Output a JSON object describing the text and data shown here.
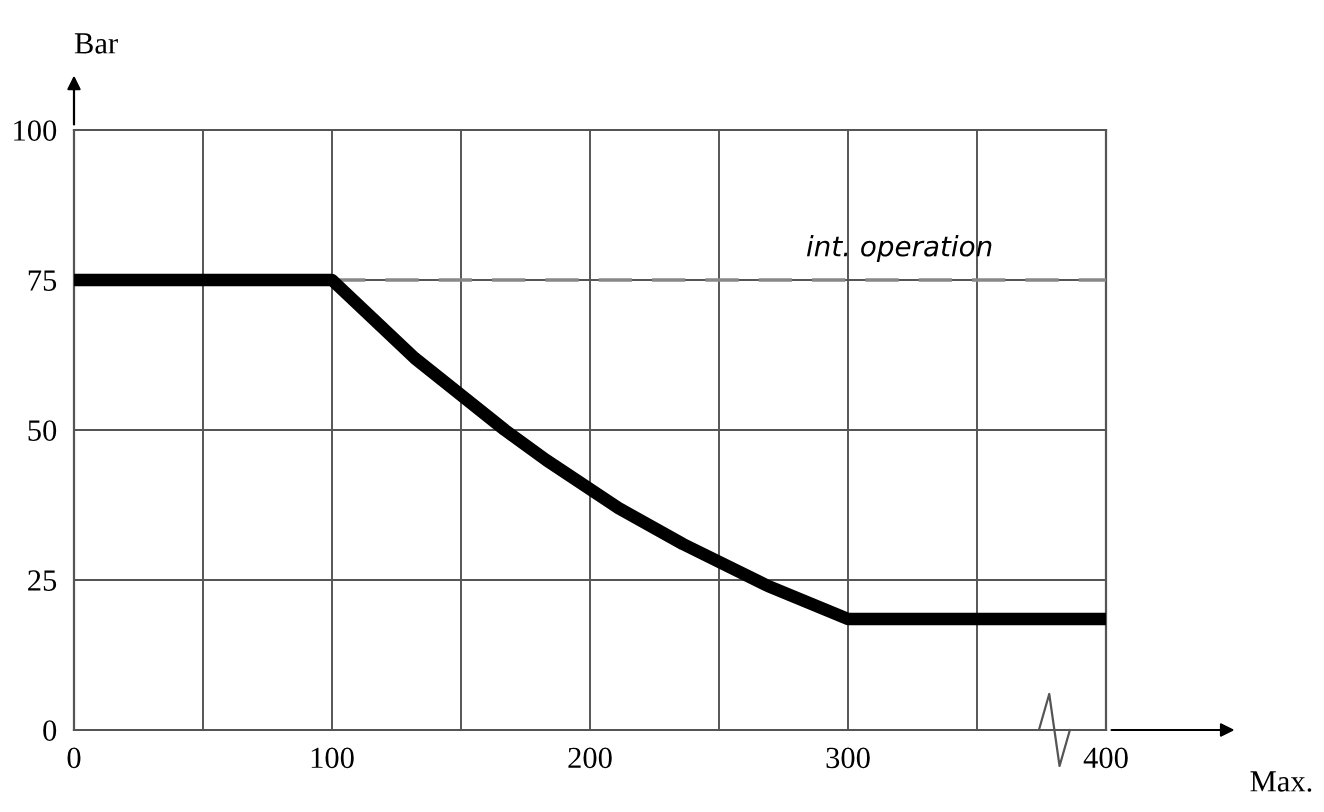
{
  "chart_data": {
    "type": "line",
    "xlabel": "Max.",
    "ylabel": "Bar",
    "x": [
      0,
      100,
      132,
      167,
      183,
      211,
      236,
      269,
      300,
      400
    ],
    "series": [
      {
        "color": "#000000",
        "values": [
          75,
          75,
          62,
          50,
          45,
          37,
          31,
          24,
          18.5,
          18.5
        ]
      }
    ],
    "xlim": [
      0,
      400
    ],
    "ylim": [
      0,
      100
    ],
    "xticks": [
      0,
      {
        "value": 50,
        "label": null
      },
      100,
      {
        "value": 150,
        "label": null
      },
      200,
      {
        "value": 250,
        "label": null
      },
      300,
      {
        "value": 350,
        "label": null
      },
      400
    ],
    "yticks": [
      0,
      25,
      50,
      75,
      100
    ],
    "ref_lines": [
      {
        "axis": "y",
        "value": 75,
        "label": "int. operation",
        "color": "#888888",
        "line_style": "dashed"
      }
    ],
    "grid": true,
    "marker": "none",
    "line_style": "solid"
  }
}
